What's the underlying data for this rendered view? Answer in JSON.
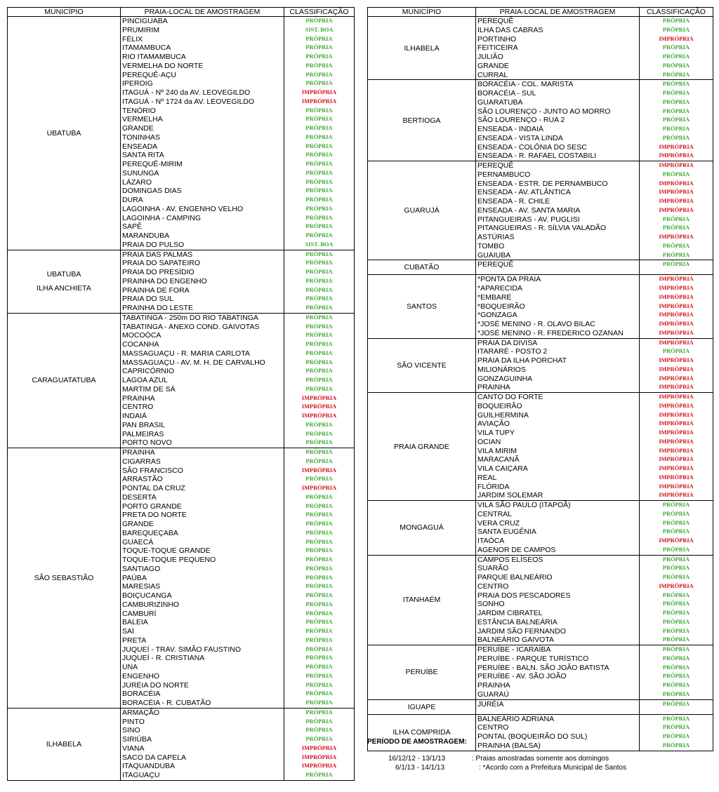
{
  "headers": {
    "municipio": "MUNICÍPIO",
    "praia": "PRAIA-LOCAL DE AMOSTRAGEM",
    "classificacao": "CLASSIFICAÇÃO"
  },
  "labels": {
    "P": "PRÓPRIA",
    "I": "IMPRÓPRIA",
    "S": "SIST. BOA"
  },
  "colors": {
    "propria": "#3ea832",
    "impropria": "#d4101a"
  },
  "left_table": [
    {
      "municipio": [
        "UBATUBA"
      ],
      "beaches": [
        [
          "PINCIGUABA",
          "P"
        ],
        [
          "PRUMIRIM",
          "S"
        ],
        [
          "FÉLIX",
          "P"
        ],
        [
          "ITAMAMBUCA",
          "P"
        ],
        [
          "RIO ITAMAMBUCA",
          "P"
        ],
        [
          "VERMELHA DO NORTE",
          "P"
        ],
        [
          "PEREQUÊ-AÇU",
          "P"
        ],
        [
          "IPEROIG",
          "P"
        ],
        [
          "ITAGUÁ - Nº 240 da AV. LEOVEGILDO",
          "I"
        ],
        [
          "ITAGUÁ - Nº 1724 da AV. LEOVEGILDO",
          "I"
        ],
        [
          "TENÓRIO",
          "P"
        ],
        [
          "VERMELHA",
          "P"
        ],
        [
          "GRANDE",
          "P"
        ],
        [
          "TONINHAS",
          "P"
        ],
        [
          "ENSEADA",
          "P"
        ],
        [
          "SANTA RITA",
          "P"
        ],
        [
          "PEREQUÊ-MIRIM",
          "P"
        ],
        [
          "SUNUNGA",
          "P"
        ],
        [
          "LÁZARO",
          "P"
        ],
        [
          "DOMINGAS DIAS",
          "P"
        ],
        [
          "DURA",
          "P"
        ],
        [
          "LAGOINHA - AV. ENGENHO VELHO",
          "P"
        ],
        [
          "LAGOINHA - CAMPING",
          "P"
        ],
        [
          "SAPÊ",
          "P"
        ],
        [
          "MARANDUBA",
          "P"
        ],
        [
          "PRAIA DO PULSO",
          "S"
        ]
      ]
    },
    {
      "municipio": [
        "UBATUBA",
        "ILHA  ANCHIETA"
      ],
      "beaches": [
        [
          "PRAIA DAS PALMAS",
          "P"
        ],
        [
          "PRAIA DO SAPATEIRO",
          "P"
        ],
        [
          "PRAIA DO PRESÍDIO",
          "P"
        ],
        [
          "PRAINHA DO ENGENHO",
          "P"
        ],
        [
          "PRAINHA DE FORA",
          "P"
        ],
        [
          "PRAIA DO SUL",
          "P"
        ],
        [
          "PRAINHA DO LESTE",
          "P"
        ]
      ]
    },
    {
      "municipio": [
        "CARAGUATATUBA"
      ],
      "beaches": [
        [
          "TABATINGA - 250m DO RIO TABATINGA",
          "P"
        ],
        [
          "TABATINGA - ANEXO COND. GAIVOTAS",
          "P"
        ],
        [
          "MOCOÓCA",
          "P"
        ],
        [
          "COCANHA",
          "P"
        ],
        [
          "MASSAGUAÇU - R. MARIA CARLOTA",
          "P"
        ],
        [
          "MASSAGUAÇU - AV. M. H. DE CARVALHO",
          "P"
        ],
        [
          "CAPRICÓRNIO",
          "P"
        ],
        [
          "LAGOA AZUL",
          "P"
        ],
        [
          "MARTIM DE SÁ",
          "P"
        ],
        [
          " PRAINHA",
          "I"
        ],
        [
          "CENTRO",
          "I"
        ],
        [
          "INDAIÁ",
          "I"
        ],
        [
          "PAN BRASIL",
          "P"
        ],
        [
          "PALMEIRAS",
          "P"
        ],
        [
          "PORTO NOVO",
          "P"
        ]
      ]
    },
    {
      "municipio": [
        "SÃO SEBASTIÃO"
      ],
      "beaches": [
        [
          "PRAINHA",
          "P"
        ],
        [
          "CIGARRAS",
          "P"
        ],
        [
          "SÃO FRANCISCO",
          "I"
        ],
        [
          "ARRASTÃO",
          "P"
        ],
        [
          "PONTAL DA CRUZ",
          "I"
        ],
        [
          "DESERTA",
          "P"
        ],
        [
          "PORTO GRANDE",
          "P"
        ],
        [
          "PRETA DO NORTE",
          "P"
        ],
        [
          "GRANDE",
          "P"
        ],
        [
          "BAREQUEÇABA",
          "P"
        ],
        [
          "GUAECÁ",
          "P"
        ],
        [
          "TOQUE-TOQUE GRANDE",
          "P"
        ],
        [
          "TOQUE-TOQUE PEQUENO",
          "P"
        ],
        [
          "SANTIAGO",
          "P"
        ],
        [
          "PAÚBA",
          "P"
        ],
        [
          "MARESIAS",
          "P"
        ],
        [
          "BOIÇUCANGA",
          "P"
        ],
        [
          "CAMBURIZINHO",
          "P"
        ],
        [
          "CAMBURÍ",
          "P"
        ],
        [
          "BALEIA",
          "P"
        ],
        [
          "SAÍ",
          "P"
        ],
        [
          "PRETA",
          "P"
        ],
        [
          "JUQUEÍ - TRAV. SIMÃO FAUSTINO",
          "P"
        ],
        [
          "JUQUEÍ - R. CRISTIANA",
          "P"
        ],
        [
          "UNA",
          "P"
        ],
        [
          "ENGENHO",
          "P"
        ],
        [
          "JURÉIA DO NORTE",
          "P"
        ],
        [
          " BORACÉIA",
          "P"
        ],
        [
          "BORACÉIA - R. CUBATÃO",
          "P"
        ]
      ]
    },
    {
      "municipio": [
        "ILHABELA"
      ],
      "beaches": [
        [
          "ARMAÇÃO",
          "P"
        ],
        [
          "PINTO",
          "P"
        ],
        [
          "SINO",
          "P"
        ],
        [
          " SIRIÚBA",
          "P"
        ],
        [
          "VIANA",
          "I"
        ],
        [
          "SACO DA CAPELA",
          "I"
        ],
        [
          "ITAQUANDUBA",
          "I"
        ],
        [
          " ITAGUAÇU",
          "P"
        ]
      ]
    }
  ],
  "right_table": [
    {
      "municipio": [
        "ILHABELA"
      ],
      "beaches": [
        [
          "PEREQUÊ",
          "P"
        ],
        [
          "ILHA DAS CABRAS",
          "P"
        ],
        [
          "PORTINHO",
          "I"
        ],
        [
          "FEITICEIRA",
          "P"
        ],
        [
          "JULIÃO",
          "P"
        ],
        [
          "GRANDE",
          "P"
        ],
        [
          "CURRAL",
          "P"
        ]
      ]
    },
    {
      "municipio": [
        "BERTIOGA"
      ],
      "beaches": [
        [
          "BORACÉIA - COL. MARISTA",
          "P"
        ],
        [
          "BORACÉIA - SUL",
          "P"
        ],
        [
          "GUARATUBA",
          "P"
        ],
        [
          "SÃO LOURENÇO - JUNTO AO MORRO",
          "P"
        ],
        [
          "SÃO LOURENÇO - RUA 2",
          "P"
        ],
        [
          "ENSEADA - INDAIÁ",
          "P"
        ],
        [
          "ENSEADA - VISTA LINDA",
          "P"
        ],
        [
          "ENSEADA - COLÔNIA DO SESC",
          "I"
        ],
        [
          "ENSEADA - R. RAFAEL COSTABILI",
          "I"
        ]
      ]
    },
    {
      "municipio": [
        "GUARUJÁ"
      ],
      "beaches": [
        [
          "PEREQUÊ",
          "I"
        ],
        [
          "PERNAMBUCO",
          "P"
        ],
        [
          "ENSEADA - ESTR. DE PERNAMBUCO",
          "I"
        ],
        [
          "ENSEADA - AV. ATLÂNTICA",
          "I"
        ],
        [
          "ENSEADA - R. CHILE",
          "I"
        ],
        [
          "ENSEADA - AV. SANTA MARIA",
          "I"
        ],
        [
          "PITANGUEIRAS - AV. PUGLISI",
          "P"
        ],
        [
          "PITANGUEIRAS - R. SÍLVIA VALADÃO",
          "P"
        ],
        [
          "ASTÚRIAS",
          "I"
        ],
        [
          "TOMBO",
          "P"
        ],
        [
          "GUAIUBA",
          "P"
        ]
      ]
    },
    {
      "municipio": [
        "CUBATÃO"
      ],
      "beaches": [
        [
          "PEREQUÊ",
          "P"
        ]
      ]
    },
    {
      "municipio": [
        "SANTOS"
      ],
      "beaches": [
        [
          " *PONTA DA PRAIA",
          "I"
        ],
        [
          " *APARECIDA",
          "I"
        ],
        [
          " *EMBARÉ",
          "I"
        ],
        [
          " *BOQUEIRÃO",
          "I"
        ],
        [
          " *GONZAGA",
          "I"
        ],
        [
          " *JOSÉ MENINO - R. OLAVO BILAC",
          "I"
        ],
        [
          " *JOSÉ MENINO - R. FREDERICO OZANAN",
          "I"
        ]
      ]
    },
    {
      "municipio": [
        "SÃO VICENTE"
      ],
      "beaches": [
        [
          "PRAIA DA DIVISA",
          "I"
        ],
        [
          " ITARARÉ - POSTO 2",
          "P"
        ],
        [
          "PRAIA DA ILHA PORCHAT",
          "I"
        ],
        [
          "MILIONÁRIOS",
          "I"
        ],
        [
          "GONZAGUINHA",
          "I"
        ],
        [
          "PRAINHA",
          "I"
        ]
      ]
    },
    {
      "municipio": [
        "PRAIA GRANDE"
      ],
      "beaches": [
        [
          "CANTO DO FORTE",
          "I"
        ],
        [
          "BOQUEIRÃO",
          "I"
        ],
        [
          "GUILHERMINA",
          "I"
        ],
        [
          "AVIAÇÃO",
          "I"
        ],
        [
          "VILA TUPY",
          "I"
        ],
        [
          "OCIAN",
          "I"
        ],
        [
          "VILA MIRIM",
          "I"
        ],
        [
          "MARACANÃ",
          "I"
        ],
        [
          "VILA CAIÇARA",
          "I"
        ],
        [
          "REAL",
          "I"
        ],
        [
          "FLÓRIDA",
          "I"
        ],
        [
          "JARDIM SOLEMAR",
          "I"
        ]
      ]
    },
    {
      "municipio": [
        "MONGAGUÁ"
      ],
      "beaches": [
        [
          " VILA SÃO PAULO (ITAPOÃ)",
          "P"
        ],
        [
          "CENTRAL",
          "P"
        ],
        [
          "VERA CRUZ",
          "P"
        ],
        [
          " SANTA EUGÊNIA",
          "P"
        ],
        [
          "ITAÓCA",
          "I"
        ],
        [
          "AGENOR DE CAMPOS",
          "P"
        ]
      ]
    },
    {
      "municipio": [
        "ITANHAÉM"
      ],
      "beaches": [
        [
          "CAMPOS ELÍSEOS",
          "P"
        ],
        [
          "SUARÃO",
          "P"
        ],
        [
          "PARQUE BALNEÁRIO",
          "P"
        ],
        [
          "CENTRO",
          "I"
        ],
        [
          "PRAIA DOS PESCADORES",
          "P"
        ],
        [
          "SONHO",
          "P"
        ],
        [
          "JARDIM CIBRATEL",
          "P"
        ],
        [
          "ESTÂNCIA BALNEÁRIA",
          "P"
        ],
        [
          "JARDIM SÃO FERNANDO",
          "P"
        ],
        [
          "BALNEÁRIO GAIVOTA",
          "P"
        ]
      ]
    },
    {
      "municipio": [
        "PERUÍBE"
      ],
      "beaches": [
        [
          "PERUÍBE - ICARAÍBA",
          "P"
        ],
        [
          "PERUÍBE - PARQUE TURÍSTICO",
          "P"
        ],
        [
          "PERUÍBE - BALN. SÃO JOÃO BATISTA",
          "P"
        ],
        [
          "PERUÍBE - AV. SÃO JOÃO",
          "P"
        ],
        [
          "PRAINHA",
          "P"
        ],
        [
          "GUARAÚ",
          "P"
        ]
      ]
    },
    {
      "municipio": [
        "IGUAPE"
      ],
      "beaches": [
        [
          "JURÉIA",
          "P"
        ]
      ]
    },
    {
      "municipio": [
        "ILHA COMPRIDA"
      ],
      "beaches": [
        [
          "BALNEÁRIO ADRIANA",
          "P"
        ],
        [
          "CENTRO",
          "P"
        ],
        [
          "PONTAL (BOQUEIRÃO DO SUL)",
          "P"
        ],
        [
          "PRAINHA (BALSA)",
          "P"
        ]
      ]
    }
  ],
  "period": {
    "title": "PERÍODO DE AMOSTRAGEM:",
    "rows": [
      {
        "dates": "16/12/12 -  13/1/13",
        "note": ": Praias amostradas somente aos domingos"
      },
      {
        "dates": "6/1/13 -  14/1/13",
        "note": ": *Acordo com a Prefeitura Municipal de Santos"
      }
    ]
  }
}
